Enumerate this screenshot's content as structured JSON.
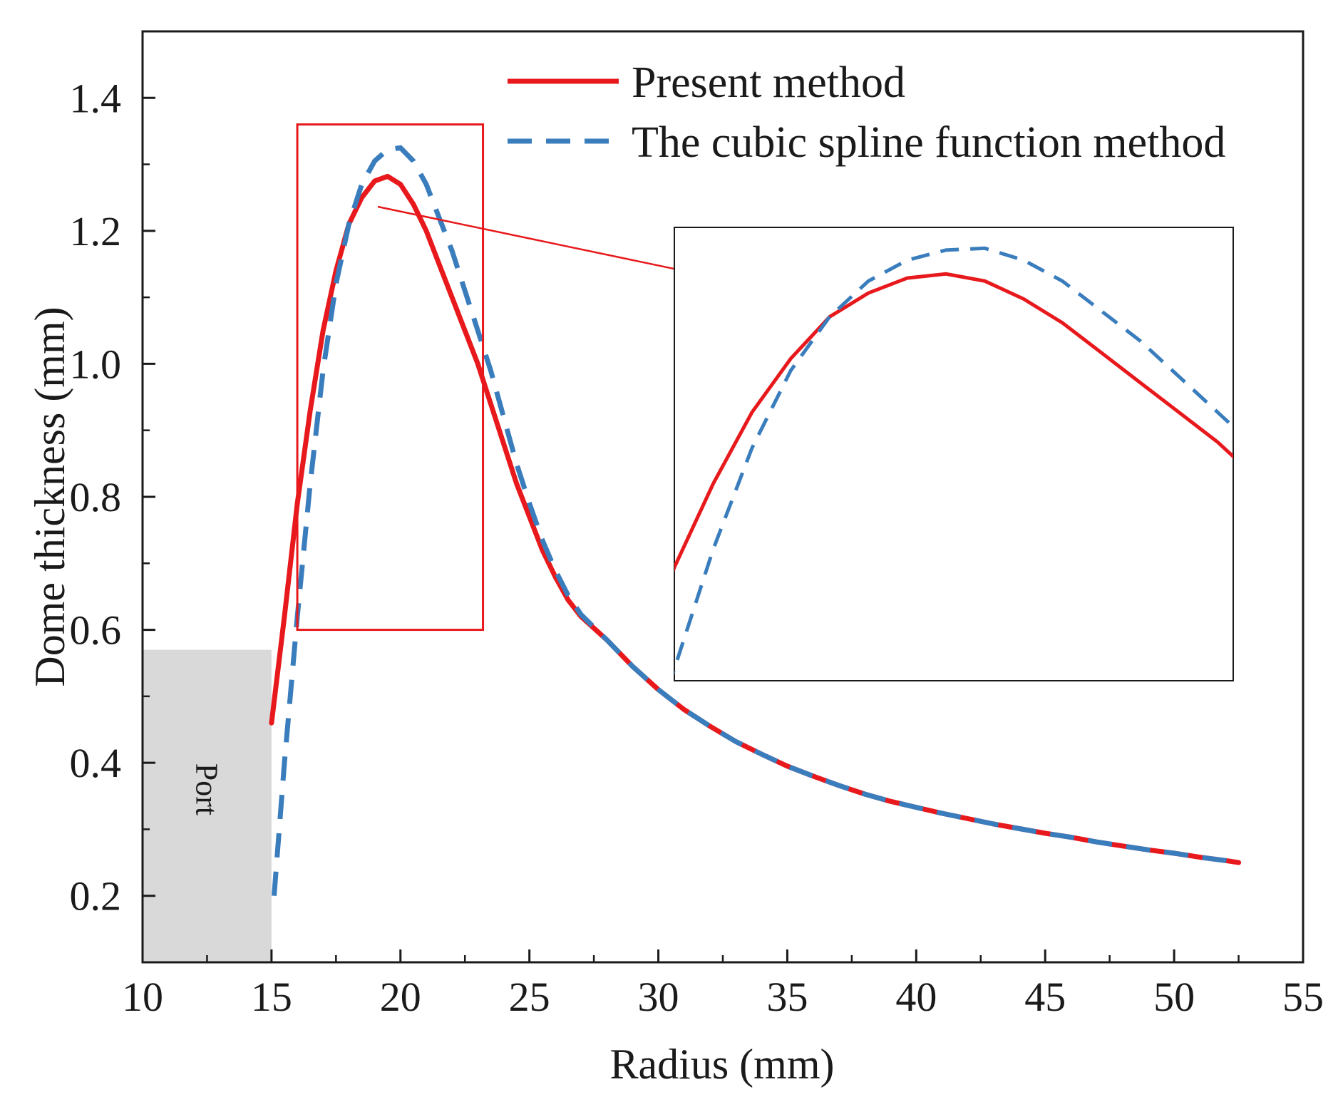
{
  "chart_data": {
    "type": "line",
    "xlabel": "Radius (mm)",
    "ylabel": "Dome thickness (mm)",
    "xlim": [
      10,
      55
    ],
    "ylim": [
      0.1,
      1.5
    ],
    "x_ticks": [
      10,
      15,
      20,
      25,
      30,
      35,
      40,
      45,
      50,
      55
    ],
    "x_tick_labels": [
      "10",
      "15",
      "20",
      "25",
      "30",
      "35",
      "40",
      "45",
      "50",
      "55"
    ],
    "y_ticks": [
      0.2,
      0.4,
      0.6,
      0.8,
      1.0,
      1.2,
      1.4
    ],
    "y_tick_labels": [
      "0.2",
      "0.4",
      "0.6",
      "0.8",
      "1.0",
      "1.2",
      "1.4"
    ],
    "legend_position": "top-right",
    "series": [
      {
        "name": "Present method",
        "color": "#e8191c",
        "style": "solid",
        "points": [
          [
            15.0,
            0.46
          ],
          [
            15.5,
            0.62
          ],
          [
            16.0,
            0.79
          ],
          [
            16.5,
            0.93
          ],
          [
            17.0,
            1.05
          ],
          [
            17.5,
            1.14
          ],
          [
            18.0,
            1.21
          ],
          [
            18.5,
            1.25
          ],
          [
            19.0,
            1.275
          ],
          [
            19.5,
            1.282
          ],
          [
            20.0,
            1.27
          ],
          [
            20.5,
            1.24
          ],
          [
            21.0,
            1.2
          ],
          [
            21.5,
            1.15
          ],
          [
            22.0,
            1.1
          ],
          [
            22.5,
            1.05
          ],
          [
            23.0,
            1.0
          ],
          [
            23.5,
            0.94
          ],
          [
            24.0,
            0.88
          ],
          [
            24.5,
            0.82
          ],
          [
            25.0,
            0.77
          ],
          [
            25.5,
            0.72
          ],
          [
            26.0,
            0.68
          ],
          [
            26.5,
            0.645
          ],
          [
            27.0,
            0.62
          ],
          [
            28.0,
            0.585
          ],
          [
            29.0,
            0.545
          ],
          [
            30.0,
            0.51
          ],
          [
            31.0,
            0.48
          ],
          [
            32.0,
            0.455
          ],
          [
            33.0,
            0.432
          ],
          [
            34.0,
            0.413
          ],
          [
            35.0,
            0.395
          ],
          [
            36.0,
            0.38
          ],
          [
            37.0,
            0.366
          ],
          [
            38.0,
            0.353
          ],
          [
            39.0,
            0.342
          ],
          [
            40.0,
            0.333
          ],
          [
            41.0,
            0.324
          ],
          [
            42.0,
            0.316
          ],
          [
            43.0,
            0.308
          ],
          [
            44.0,
            0.301
          ],
          [
            45.0,
            0.294
          ],
          [
            46.0,
            0.288
          ],
          [
            47.0,
            0.281
          ],
          [
            48.0,
            0.275
          ],
          [
            49.0,
            0.269
          ],
          [
            50.0,
            0.264
          ],
          [
            51.0,
            0.258
          ],
          [
            52.0,
            0.253
          ],
          [
            52.5,
            0.25
          ]
        ]
      },
      {
        "name": "The cubic spline function method",
        "color": "#3a7dbd",
        "style": "dashed",
        "points": [
          [
            15.1,
            0.2
          ],
          [
            15.5,
            0.4
          ],
          [
            16.0,
            0.62
          ],
          [
            16.5,
            0.82
          ],
          [
            17.0,
            0.99
          ],
          [
            17.5,
            1.12
          ],
          [
            18.0,
            1.21
          ],
          [
            18.5,
            1.27
          ],
          [
            19.0,
            1.305
          ],
          [
            19.5,
            1.322
          ],
          [
            20.0,
            1.325
          ],
          [
            20.5,
            1.305
          ],
          [
            21.0,
            1.27
          ],
          [
            21.5,
            1.22
          ],
          [
            22.0,
            1.17
          ],
          [
            22.5,
            1.11
          ],
          [
            23.0,
            1.05
          ],
          [
            23.5,
            0.99
          ],
          [
            24.0,
            0.92
          ],
          [
            24.5,
            0.85
          ],
          [
            25.0,
            0.79
          ],
          [
            25.5,
            0.735
          ],
          [
            26.0,
            0.69
          ],
          [
            26.5,
            0.652
          ],
          [
            27.0,
            0.623
          ],
          [
            28.0,
            0.585
          ],
          [
            29.0,
            0.545
          ],
          [
            30.0,
            0.51
          ],
          [
            31.0,
            0.48
          ],
          [
            32.0,
            0.455
          ],
          [
            33.0,
            0.432
          ],
          [
            34.0,
            0.413
          ],
          [
            35.0,
            0.395
          ],
          [
            36.0,
            0.38
          ],
          [
            37.0,
            0.366
          ],
          [
            38.0,
            0.353
          ],
          [
            39.0,
            0.342
          ],
          [
            40.0,
            0.333
          ],
          [
            41.0,
            0.324
          ],
          [
            42.0,
            0.316
          ],
          [
            43.0,
            0.308
          ],
          [
            44.0,
            0.301
          ],
          [
            45.0,
            0.294
          ],
          [
            46.0,
            0.288
          ],
          [
            47.0,
            0.281
          ],
          [
            48.0,
            0.275
          ],
          [
            49.0,
            0.269
          ],
          [
            50.0,
            0.264
          ],
          [
            51.0,
            0.258
          ],
          [
            52.0,
            0.253
          ],
          [
            52.5,
            0.25
          ]
        ]
      }
    ],
    "port_region": {
      "label": "Port",
      "x_range": [
        10,
        15
      ],
      "y_range": [
        0.1,
        0.57
      ],
      "color": "#d9d9d9"
    },
    "zoom_box": {
      "x_range": [
        16,
        23.2
      ],
      "y_range": [
        0.6,
        1.36
      ],
      "color": "#e8191c"
    },
    "inset": {
      "x_range": [
        16,
        23.2
      ],
      "y_range": [
        0.6,
        1.36
      ],
      "placement_data": {
        "x_range": [
          30.6,
          52.5
        ],
        "y_range": [
          0.52,
          1.2
        ]
      }
    }
  }
}
